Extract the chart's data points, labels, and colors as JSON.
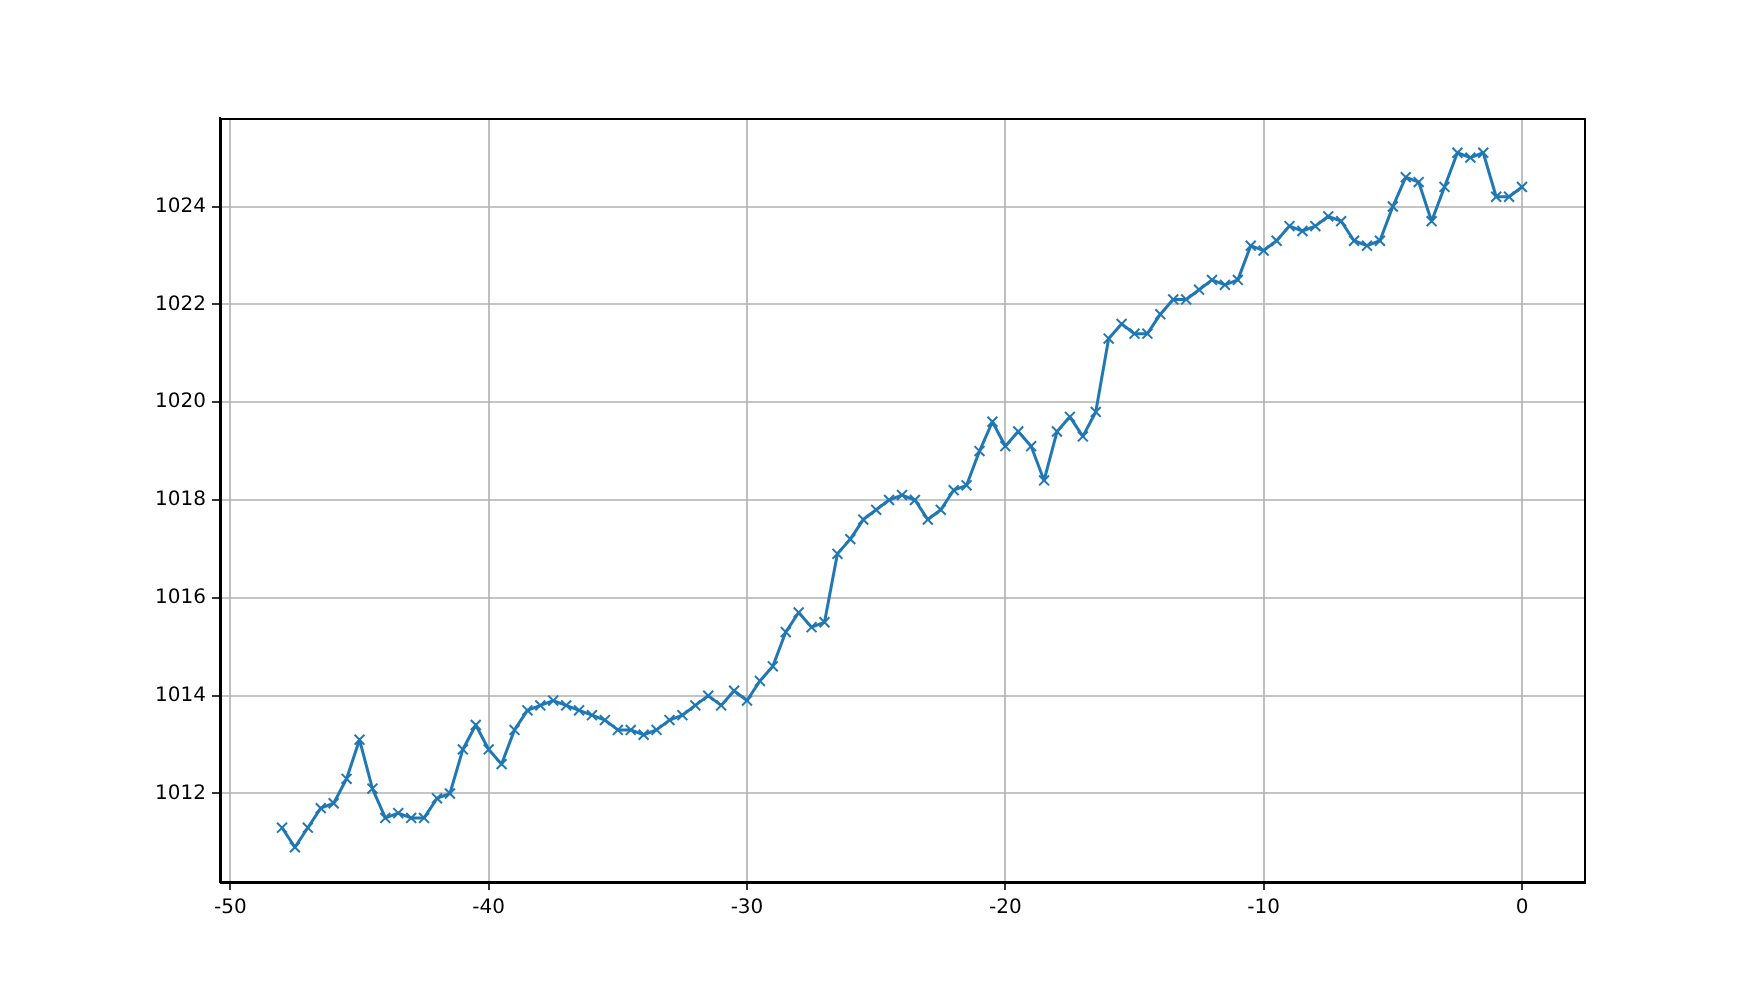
{
  "chart_data": {
    "type": "line",
    "x": [
      -48,
      -47.5,
      -47,
      -46.5,
      -46,
      -45.5,
      -45,
      -44.5,
      -44,
      -43.5,
      -43,
      -42.5,
      -42,
      -41.5,
      -41,
      -40.5,
      -40,
      -39.5,
      -39,
      -38.5,
      -38,
      -37.5,
      -37,
      -36.5,
      -36,
      -35.5,
      -35,
      -34.5,
      -34,
      -33.5,
      -33,
      -32.5,
      -32,
      -31.5,
      -31,
      -30.5,
      -30,
      -29.5,
      -29,
      -28.5,
      -28,
      -27.5,
      -27,
      -26.5,
      -26,
      -25.5,
      -25,
      -24.5,
      -24,
      -23.5,
      -23,
      -22.5,
      -22,
      -21.5,
      -21,
      -20.5,
      -20,
      -19.5,
      -19,
      -18.5,
      -18,
      -17.5,
      -17,
      -16.5,
      -16,
      -15.5,
      -15,
      -14.5,
      -14,
      -13.5,
      -13,
      -12.5,
      -12,
      -11.5,
      -11,
      -10.5,
      -10,
      -9.5,
      -9,
      -8.5,
      -8,
      -7.5,
      -7,
      -6.5,
      -6,
      -5.5,
      -5,
      -4.5,
      -4,
      -3.5,
      -3,
      -2.5,
      -2,
      -1.5,
      -1,
      -0.5,
      0
    ],
    "series": [
      {
        "color": "#1f77b4",
        "values": [
          1011.3,
          1010.9,
          1011.3,
          1011.7,
          1011.8,
          1012.3,
          1013.1,
          1012.1,
          1011.5,
          1011.6,
          1011.5,
          1011.5,
          1011.9,
          1012.0,
          1012.9,
          1013.4,
          1012.9,
          1012.6,
          1013.3,
          1013.7,
          1013.8,
          1013.9,
          1013.8,
          1013.7,
          1013.6,
          1013.5,
          1013.3,
          1013.3,
          1013.2,
          1013.3,
          1013.5,
          1013.6,
          1013.8,
          1014.0,
          1013.8,
          1014.1,
          1013.9,
          1014.3,
          1014.6,
          1015.3,
          1015.7,
          1015.4,
          1015.5,
          1016.9,
          1017.2,
          1017.6,
          1017.8,
          1018.0,
          1018.1,
          1018.0,
          1017.6,
          1017.8,
          1018.2,
          1018.3,
          1019.0,
          1019.6,
          1019.1,
          1019.4,
          1019.1,
          1018.4,
          1019.4,
          1019.7,
          1019.3,
          1019.8,
          1021.3,
          1021.6,
          1021.4,
          1021.4,
          1021.8,
          1022.1,
          1022.1,
          1022.3,
          1022.5,
          1022.4,
          1022.5,
          1023.2,
          1023.1,
          1023.3,
          1023.6,
          1023.5,
          1023.6,
          1023.8,
          1023.7,
          1023.3,
          1023.2,
          1023.3,
          1024.0,
          1024.6,
          1024.5,
          1023.7,
          1024.4,
          1025.1,
          1025.0,
          1025.1,
          1024.2,
          1024.2,
          1024.4
        ]
      }
    ],
    "xlim": [
      -50.4,
      2.4
    ],
    "xticks": [
      -50,
      -40,
      -30,
      -20,
      -10,
      0
    ],
    "ylim": [
      1010.19,
      1025.81
    ],
    "yticks": [
      1012,
      1014,
      1016,
      1018,
      1020,
      1022,
      1024
    ],
    "grid": true,
    "marker": "cross",
    "line_style": "solid",
    "legend": false
  }
}
